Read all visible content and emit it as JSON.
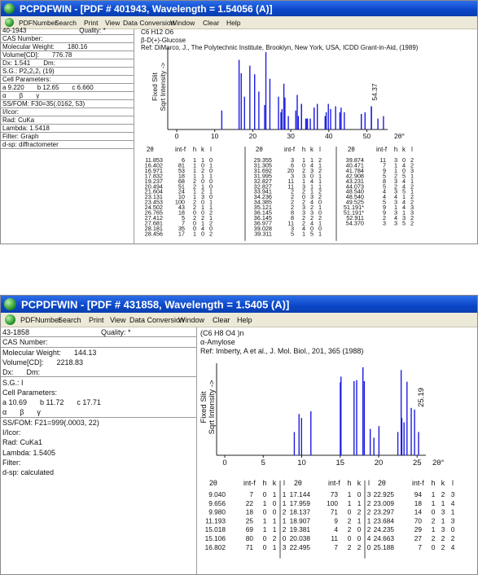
{
  "windows": [
    {
      "title": "PCPDFWIN - [PDF # 401943, Wavelength = 1.54056 (A)]",
      "menu": [
        "PDFNumber",
        "Search",
        "Print",
        "View",
        "Data Conversion",
        "Window",
        "Clear",
        "Help"
      ],
      "info": [
        [
          "40-1943",
          "Quality: *"
        ],
        [
          "CAS Number:"
        ],
        [
          "Molecular Weight:",
          "180.16"
        ],
        [
          "Volume[CD]:",
          "776.78"
        ],
        [
          "Dx: 1.541",
          "Dm:"
        ],
        [
          "S.G.: P2₁2₁2₁ (19)"
        ],
        [
          "Cell Parameters:"
        ],
        [
          "a 9.220",
          "b 12.65",
          "c 6.660"
        ],
        [
          "α",
          "β",
          "γ"
        ],
        [
          "SS/FOM: F30=35(.0162, 53)"
        ],
        [
          "I/Icor:"
        ],
        [
          "Rad: CuKa"
        ],
        [
          "Lambda: 1.5418"
        ],
        [
          "Filter: Graph"
        ],
        [
          "d-sp: diffractometer"
        ]
      ],
      "header": [
        "C6 H12 O6",
        "β-D(+)-Glucose",
        "Ref: DiMarco, J., The Polytechnic Institute, Brooklyn, New York, USA, ICDD Grant-in-Aid, (1989)"
      ],
      "plot": {
        "xticks": [
          0,
          10,
          20,
          30,
          40,
          50
        ],
        "x_label": "2θ°",
        "y_label": [
          "Fixed Slit",
          "Sqrt Intensity ->"
        ],
        "peak_label": "54.37",
        "y_scale": "sqrt",
        "ylim": [
          0,
          100
        ],
        "color": "#1c1ce0"
      },
      "table": {
        "columns": [
          "2θ",
          "int-f",
          "h",
          "k",
          "l"
        ],
        "groups": [
          [
            [
              "11.853",
              6,
              1,
              1,
              0
            ],
            [
              "16.402",
              81,
              1,
              0,
              1
            ],
            [
              "16.971",
              53,
              1,
              2,
              0
            ],
            [
              "17.832",
              18,
              1,
              1,
              1
            ],
            [
              "19.237",
              68,
              2,
              0,
              0
            ],
            [
              "20.494",
              51,
              2,
              1,
              0
            ],
            [
              "21.604",
              24,
              1,
              2,
              1
            ],
            [
              "23.131",
              10,
              1,
              3,
              0
            ],
            [
              "23.453",
              100,
              2,
              0,
              1
            ],
            [
              "24.502",
              43,
              2,
              1,
              1
            ],
            [
              "26.765",
              18,
              0,
              0,
              2
            ],
            [
              "27.412",
              5,
              2,
              2,
              1
            ],
            [
              "27.681",
              7,
              0,
              1,
              2
            ],
            [
              "28.181",
              35,
              0,
              4,
              0
            ],
            [
              "28.456",
              17,
              1,
              0,
              2
            ]
          ],
          [
            [
              "29.355",
              3,
              1,
              1,
              2
            ],
            [
              "31.305",
              6,
              0,
              4,
              1
            ],
            [
              "31.692",
              20,
              2,
              3,
              2
            ],
            [
              "31.995",
              3,
              3,
              0,
              1
            ],
            [
              "32.827",
              11,
              1,
              4,
              1
            ],
            [
              "32.827",
              11,
              3,
              1,
              1
            ],
            [
              "33.941",
              2,
              2,
              1,
              2
            ],
            [
              "34.236",
              2,
              0,
              3,
              2
            ],
            [
              "34.385",
              2,
              2,
              4,
              0
            ],
            [
              "35.121",
              2,
              3,
              2,
              1
            ],
            [
              "36.145",
              8,
              3,
              3,
              0
            ],
            [
              "36.145",
              8,
              2,
              2,
              2
            ],
            [
              "36.977",
              11,
              2,
              4,
              1
            ],
            [
              "39.028",
              3,
              4,
              0,
              0
            ],
            [
              "39.311",
              5,
              1,
              5,
              1
            ]
          ],
          [
            [
              "39.874",
              11,
              3,
              0,
              2
            ],
            [
              "40.471",
              7,
              1,
              4,
              2
            ],
            [
              "41.784",
              9,
              1,
              0,
              3
            ],
            [
              "42.908",
              5,
              2,
              5,
              1
            ],
            [
              "43.231",
              8,
              3,
              4,
              1
            ],
            [
              "44.073",
              5,
              2,
              4,
              2
            ],
            [
              "48.540",
              4,
              3,
              5,
              1
            ],
            [
              "48.540",
              4,
              4,
              1,
              2
            ],
            [
              "49.525",
              5,
              3,
              4,
              2
            ],
            [
              "51.191*",
              9,
              1,
              4,
              3
            ],
            [
              "51.191*",
              9,
              3,
              1,
              3
            ],
            [
              "52.911",
              2,
              4,
              3,
              2
            ],
            [
              "54.370",
              3,
              3,
              5,
              2
            ]
          ]
        ]
      }
    },
    {
      "title": "PCPDFWIN - [PDF # 431858, Wavelength = 1.5405 (A)]",
      "menu": [
        "PDFNumber",
        "Search",
        "Print",
        "View",
        "Data Conversion",
        "Window",
        "Clear",
        "Help"
      ],
      "info": [
        [
          "43-1858",
          "Quality: *"
        ],
        [
          "CAS Number:"
        ],
        [
          "Molecular Weight:",
          "144.13"
        ],
        [
          "Volume[CD]:",
          "2218.83"
        ],
        [
          "Dx:",
          "Dm:"
        ],
        [
          "S.G.: I"
        ],
        [
          "Cell Parameters:"
        ],
        [
          "a 10.69",
          "b 11.72",
          "c 17.71"
        ],
        [
          "α",
          "β",
          "γ"
        ],
        [
          "SS/FOM: F21=999(.0003, 22)"
        ],
        [
          "I/Icor:"
        ],
        [
          "Rad: CuKa1"
        ],
        [
          "Lambda: 1.5405"
        ],
        [
          "Filter:"
        ],
        [
          "d-sp: calculated"
        ]
      ],
      "header": [
        "(C6 H8 O4 )n",
        "α-Amylose",
        "Ref: Imberty, A et al., J. Mol. Biol., 201, 365 (1988)"
      ],
      "plot": {
        "xticks": [
          0,
          5,
          10,
          15,
          20,
          25
        ],
        "x_label": "2θ°",
        "y_label": [
          "Fixed Slit",
          "Sqrt Intensity ->"
        ],
        "peak_label": "25.19",
        "y_scale": "sqrt",
        "ylim": [
          0,
          100
        ],
        "color": "#1c1ce0"
      },
      "table": {
        "columns": [
          "2θ",
          "int-f",
          "h",
          "k",
          "l"
        ],
        "groups": [
          [
            [
              "9.040",
              7,
              0,
              1,
              1
            ],
            [
              "9.656",
              22,
              1,
              0,
              1
            ],
            [
              "9.980",
              18,
              0,
              0,
              2
            ],
            [
              "11.193",
              25,
              1,
              1,
              1
            ],
            [
              "15.018",
              69,
              1,
              1,
              2
            ],
            [
              "15.106",
              80,
              0,
              2,
              0
            ],
            [
              "16.802",
              71,
              0,
              1,
              3
            ]
          ],
          [
            [
              "17.144",
              73,
              1,
              0,
              3
            ],
            [
              "17.959",
              100,
              1,
              1,
              2
            ],
            [
              "18.137",
              71,
              0,
              2,
              2
            ],
            [
              "18.907",
              9,
              2,
              1,
              1
            ],
            [
              "19.381",
              4,
              2,
              0,
              2
            ],
            [
              "20.038",
              11,
              0,
              0,
              4
            ],
            [
              "22.495",
              7,
              2,
              2,
              0
            ]
          ],
          [
            [
              "22.925",
              94,
              1,
              2,
              3
            ],
            [
              "23.009",
              18,
              1,
              1,
              4
            ],
            [
              "23.297",
              14,
              0,
              3,
              1
            ],
            [
              "23.684",
              70,
              2,
              1,
              3
            ],
            [
              "24.235",
              29,
              1,
              3,
              0
            ],
            [
              "24.663",
              27,
              2,
              2,
              2
            ],
            [
              "25.188",
              7,
              0,
              2,
              4
            ]
          ]
        ]
      }
    }
  ]
}
